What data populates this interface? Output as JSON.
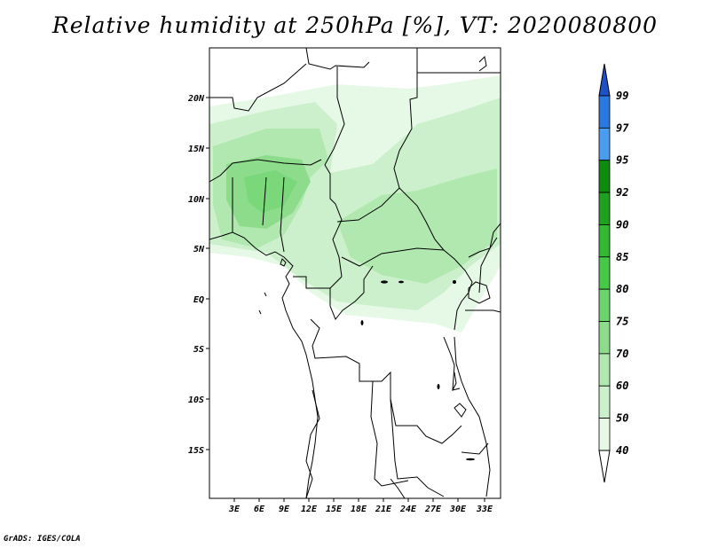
{
  "title": "Relative humidity at 250hPa [%], VT: 2020080800",
  "credit": "GrADS: IGES/COLA",
  "lat_labels": [
    "20N",
    "15N",
    "10N",
    "5N",
    "EQ",
    "5S",
    "10S",
    "15S"
  ],
  "lon_labels": [
    "3E",
    "6E",
    "9E",
    "12E",
    "15E",
    "18E",
    "21E",
    "24E",
    "27E",
    "30E",
    "33E"
  ],
  "colorbar": {
    "labels": [
      "99",
      "97",
      "95",
      "92",
      "90",
      "85",
      "80",
      "75",
      "70",
      "60",
      "50",
      "40"
    ],
    "colors": [
      "#1e50c8",
      "#2a78e0",
      "#4a9cf0",
      "#0e8c0e",
      "#20a020",
      "#34b834",
      "#48c848",
      "#6cd46c",
      "#8cdc8c",
      "#b0e8b0",
      "#ccf0cc",
      "#e6f8e6"
    ]
  },
  "map": {
    "lon_range": [
      0,
      35
    ],
    "lat_range": [
      -20,
      25
    ]
  }
}
